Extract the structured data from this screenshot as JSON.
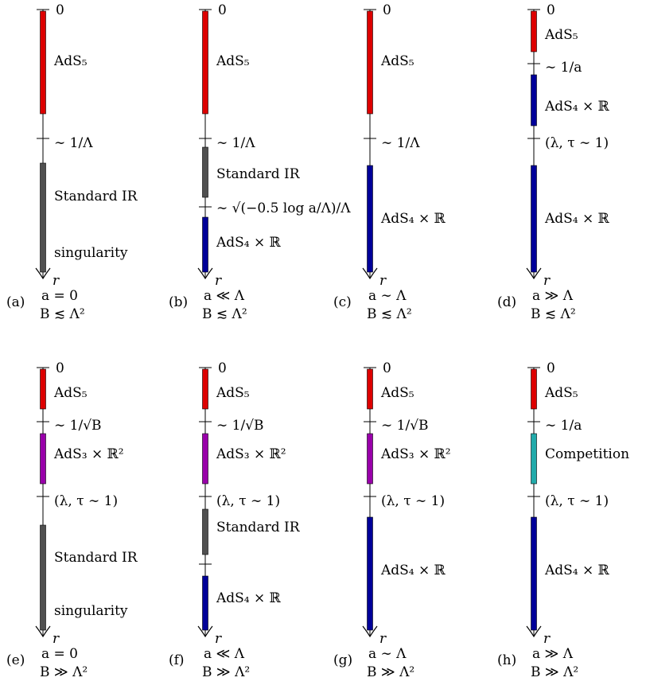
{
  "colors": {
    "ads5": "#dd0000",
    "standard_ir": "#505050",
    "ads4": "#000099",
    "ads3": "#9900aa",
    "competition": "#22aaaa",
    "axis": "#000000"
  },
  "panels": [
    {
      "id": "a",
      "top_label": "0",
      "axis_label": "r",
      "caption": {
        "tag": "(a)",
        "line1": "a = 0",
        "line2": "B ≲ Λ²"
      },
      "segments": [
        {
          "color_key": "ads5",
          "label": "AdS₅"
        },
        {
          "color_key": "standard_ir",
          "label": "Standard IR"
        }
      ],
      "ticks": [
        {
          "label": "∼ 1/Λ"
        }
      ],
      "extra_labels": [
        {
          "text": "singularity"
        }
      ]
    },
    {
      "id": "b",
      "top_label": "0",
      "axis_label": "r",
      "caption": {
        "tag": "(b)",
        "line1": "a ≪ Λ",
        "line2": "B ≲ Λ²"
      },
      "segments": [
        {
          "color_key": "ads5",
          "label": "AdS₅"
        },
        {
          "color_key": "standard_ir",
          "label": "Standard IR"
        },
        {
          "color_key": "ads4",
          "label": "AdS₄ × ℝ"
        }
      ],
      "ticks": [
        {
          "label": "∼ 1/Λ"
        },
        {
          "label": "∼ √(−0.5 log a/Λ)/Λ"
        }
      ],
      "extra_labels": []
    },
    {
      "id": "c",
      "top_label": "0",
      "axis_label": "r",
      "caption": {
        "tag": "(c)",
        "line1": "a ∼ Λ",
        "line2": "B ≲ Λ²"
      },
      "segments": [
        {
          "color_key": "ads5",
          "label": "AdS₅"
        },
        {
          "color_key": "ads4",
          "label": "AdS₄ × ℝ"
        }
      ],
      "ticks": [
        {
          "label": "∼ 1/Λ"
        }
      ],
      "extra_labels": []
    },
    {
      "id": "d",
      "top_label": "0",
      "axis_label": "r",
      "caption": {
        "tag": "(d)",
        "line1": "a ≫ Λ",
        "line2": "B ≲ Λ²"
      },
      "segments": [
        {
          "color_key": "ads5",
          "label": "AdS₅"
        },
        {
          "color_key": "ads4",
          "label": "AdS₄ × ℝ"
        },
        {
          "color_key": "ads4",
          "label": "AdS₄ × ℝ"
        }
      ],
      "ticks": [
        {
          "label": "∼ 1/a"
        },
        {
          "label": "(λ, τ ∼ 1)"
        }
      ],
      "extra_labels": []
    },
    {
      "id": "e",
      "top_label": "0",
      "axis_label": "r",
      "caption": {
        "tag": "(e)",
        "line1": "a = 0",
        "line2": "B ≫ Λ²"
      },
      "segments": [
        {
          "color_key": "ads5",
          "label": "AdS₅"
        },
        {
          "color_key": "ads3",
          "label": "AdS₃ × ℝ²"
        },
        {
          "color_key": "standard_ir",
          "label": "Standard IR"
        }
      ],
      "ticks": [
        {
          "label": "∼ 1/√B"
        },
        {
          "label": "(λ, τ ∼ 1)"
        }
      ],
      "extra_labels": [
        {
          "text": "singularity"
        }
      ]
    },
    {
      "id": "f",
      "top_label": "0",
      "axis_label": "r",
      "caption": {
        "tag": "(f)",
        "line1": "a ≪ Λ",
        "line2": "B ≫ Λ²"
      },
      "segments": [
        {
          "color_key": "ads5",
          "label": "AdS₅"
        },
        {
          "color_key": "ads3",
          "label": "AdS₃ × ℝ²"
        },
        {
          "color_key": "standard_ir",
          "label": "Standard IR"
        },
        {
          "color_key": "ads4",
          "label": "AdS₄ × ℝ"
        }
      ],
      "ticks": [
        {
          "label": "∼ 1/√B"
        },
        {
          "label": "(λ, τ ∼ 1)"
        },
        {
          "label": ""
        }
      ],
      "extra_labels": []
    },
    {
      "id": "g",
      "top_label": "0",
      "axis_label": "r",
      "caption": {
        "tag": "(g)",
        "line1": "a ∼ Λ",
        "line2": "B ≫ Λ²"
      },
      "segments": [
        {
          "color_key": "ads5",
          "label": "AdS₅"
        },
        {
          "color_key": "ads3",
          "label": "AdS₃ × ℝ²"
        },
        {
          "color_key": "ads4",
          "label": "AdS₄ × ℝ"
        }
      ],
      "ticks": [
        {
          "label": "∼ 1/√B"
        },
        {
          "label": "(λ, τ ∼ 1)"
        }
      ],
      "extra_labels": []
    },
    {
      "id": "h",
      "top_label": "0",
      "axis_label": "r",
      "caption": {
        "tag": "(h)",
        "line1": "a ≫ Λ",
        "line2": "B ≫ Λ²"
      },
      "segments": [
        {
          "color_key": "ads5",
          "label": "AdS₅"
        },
        {
          "color_key": "competition",
          "label": "Competition"
        },
        {
          "color_key": "ads4",
          "label": "AdS₄ × ℝ"
        }
      ],
      "ticks": [
        {
          "label": "∼ 1/a"
        },
        {
          "label": "(λ, τ ∼ 1)"
        }
      ],
      "extra_labels": []
    }
  ]
}
